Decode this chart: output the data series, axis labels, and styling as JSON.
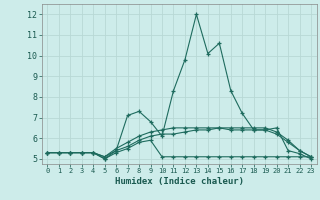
{
  "x": [
    0,
    1,
    2,
    3,
    4,
    5,
    6,
    7,
    8,
    9,
    10,
    11,
    12,
    13,
    14,
    15,
    16,
    17,
    18,
    19,
    20,
    21,
    22,
    23
  ],
  "line1": [
    5.3,
    5.3,
    5.3,
    5.3,
    5.3,
    5.0,
    5.4,
    7.1,
    7.3,
    6.8,
    6.1,
    8.3,
    9.8,
    12.0,
    10.1,
    10.6,
    8.3,
    7.2,
    6.4,
    6.4,
    6.5,
    5.4,
    5.25,
    5.0
  ],
  "line2": [
    5.3,
    5.3,
    5.3,
    5.3,
    5.3,
    5.0,
    5.3,
    5.5,
    5.8,
    5.9,
    5.1,
    5.1,
    5.1,
    5.1,
    5.1,
    5.1,
    5.1,
    5.1,
    5.1,
    5.1,
    5.1,
    5.1,
    5.1,
    5.1
  ],
  "line3": [
    5.3,
    5.3,
    5.3,
    5.3,
    5.3,
    5.1,
    5.4,
    5.6,
    5.9,
    6.1,
    6.2,
    6.2,
    6.3,
    6.4,
    6.4,
    6.5,
    6.5,
    6.5,
    6.5,
    6.5,
    6.3,
    5.9,
    5.4,
    5.1
  ],
  "line4": [
    5.3,
    5.3,
    5.3,
    5.3,
    5.3,
    5.1,
    5.5,
    5.8,
    6.1,
    6.3,
    6.4,
    6.5,
    6.5,
    6.5,
    6.5,
    6.5,
    6.4,
    6.4,
    6.4,
    6.4,
    6.2,
    5.8,
    5.4,
    5.1
  ],
  "bg_color": "#cdecea",
  "line_color": "#1e6b5e",
  "grid_color_major": "#b8d8d5",
  "grid_color_minor": "#d0e8e5",
  "xlabel": "Humidex (Indice chaleur)",
  "yticks": [
    5,
    6,
    7,
    8,
    9,
    10,
    11,
    12
  ],
  "ylim": [
    4.75,
    12.5
  ],
  "xlim": [
    -0.5,
    23.5
  ]
}
